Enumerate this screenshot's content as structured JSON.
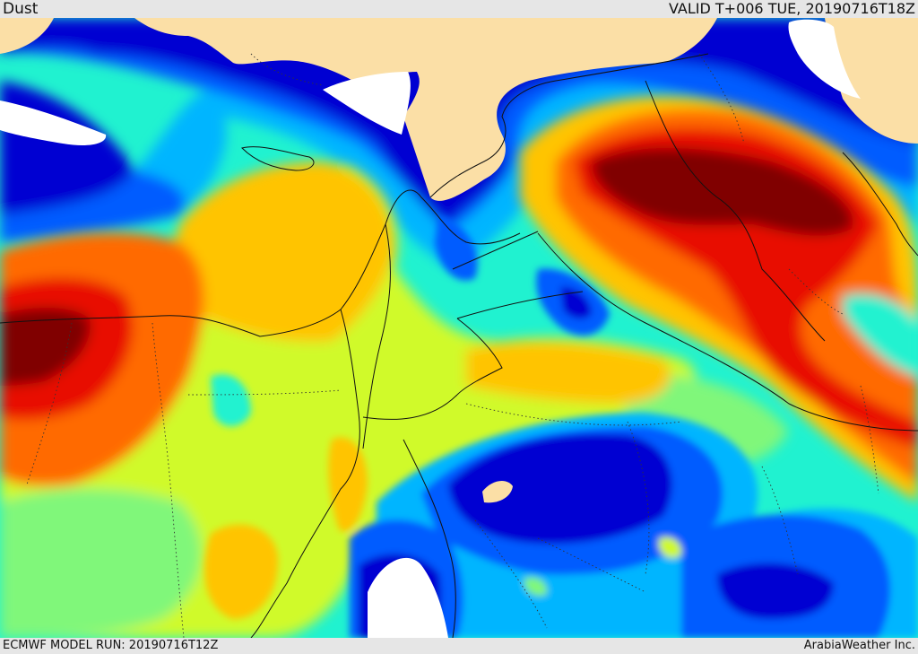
{
  "header": {
    "variable": "Dust",
    "valid_time": "VALID T+006 TUE, 20190716T18Z"
  },
  "footer": {
    "model_run": "ECMWF MODEL RUN: 20190716T12Z",
    "brand": "ArabiaWeather Inc."
  },
  "colors": {
    "land": "#fbdfa6",
    "water": "#ffffff",
    "level1": "#0000d2",
    "level2": "#005cff",
    "level3": "#00b5ff",
    "level4": "#20f2d0",
    "level5": "#80f77a",
    "level6": "#d0fa2c",
    "level7": "#ffc400",
    "level8": "#ff6a00",
    "level9": "#e80e00",
    "level10": "#800000"
  }
}
